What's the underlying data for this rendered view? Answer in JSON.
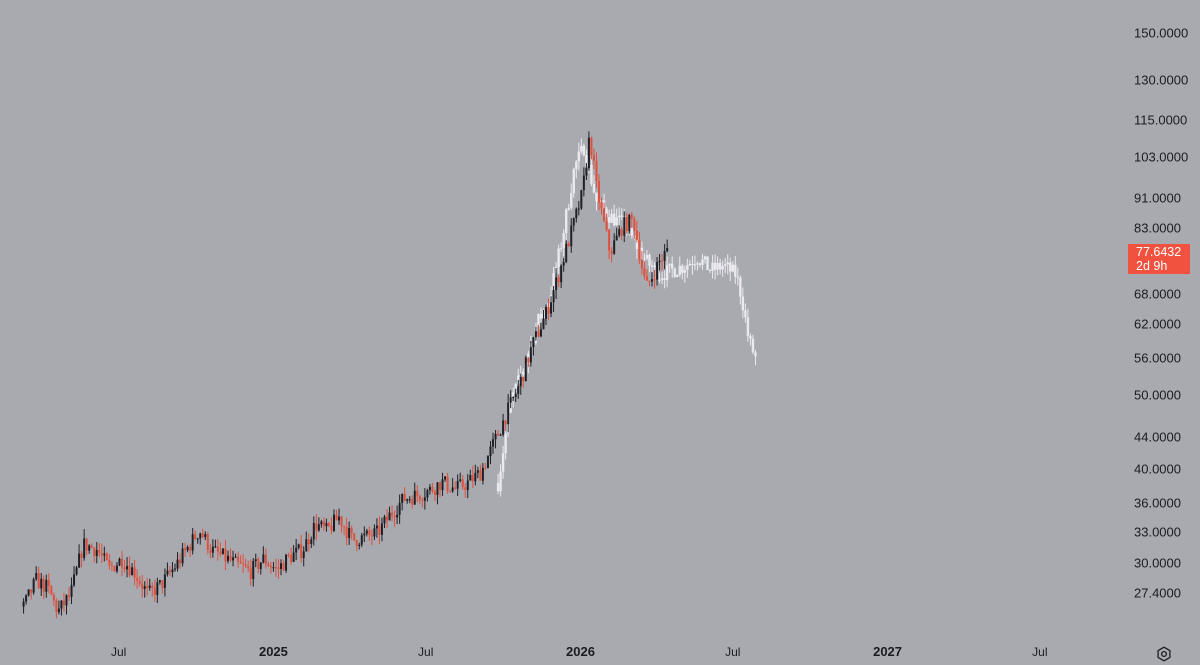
{
  "colors": {
    "background": "#a9aab0",
    "candle_up": "#1e2026",
    "candle_down": "#e0503c",
    "projection": "#e9e9ef",
    "price_tag": "#f0523f",
    "text": "#1a1c22"
  },
  "last_price": {
    "value": "77.6432",
    "countdown": "2d 9h"
  },
  "settings_icon": "gear-icon",
  "chart_data": {
    "type": "candlestick",
    "title": "",
    "xlabel": "",
    "ylabel": "",
    "scale": "log",
    "ylim": [
      25.5,
      155
    ],
    "xlim": [
      "2024-03-01",
      "2027-09-01"
    ],
    "grid": false,
    "y_ticks": [
      "150.0000",
      "130.0000",
      "115.0000",
      "103.0000",
      "91.0000",
      "83.0000",
      "68.0000",
      "62.0000",
      "56.0000",
      "50.0000",
      "44.0000",
      "40.0000",
      "36.0000",
      "33.0000",
      "30.0000",
      "27.4000"
    ],
    "x_ticks": [
      {
        "label": "Jul",
        "date": "2024-07-01",
        "major": false
      },
      {
        "label": "2025",
        "date": "2025-01-01",
        "major": true
      },
      {
        "label": "Jul",
        "date": "2025-07-01",
        "major": false
      },
      {
        "label": "2026",
        "date": "2026-01-01",
        "major": true
      },
      {
        "label": "Jul",
        "date": "2026-07-01",
        "major": false
      },
      {
        "label": "2027",
        "date": "2027-01-01",
        "major": true
      },
      {
        "label": "Jul",
        "date": "2027-07-01",
        "major": false
      }
    ],
    "series": [
      {
        "role": "actual",
        "close_path": [
          [
            "2024-03-10",
            26.3
          ],
          [
            "2024-03-25",
            28.5
          ],
          [
            "2024-04-08",
            27.8
          ],
          [
            "2024-04-20",
            25.9
          ],
          [
            "2024-05-05",
            27.3
          ],
          [
            "2024-05-20",
            31.8
          ],
          [
            "2024-06-05",
            31.3
          ],
          [
            "2024-06-20",
            29.5
          ],
          [
            "2024-07-05",
            30.4
          ],
          [
            "2024-07-20",
            29.2
          ],
          [
            "2024-08-05",
            27.3
          ],
          [
            "2024-08-20",
            28.1
          ],
          [
            "2024-09-05",
            29.6
          ],
          [
            "2024-09-20",
            31.3
          ],
          [
            "2024-10-05",
            33.2
          ],
          [
            "2024-10-20",
            31.2
          ],
          [
            "2024-11-05",
            30.5
          ],
          [
            "2024-11-20",
            29.8
          ],
          [
            "2024-12-05",
            29.3
          ],
          [
            "2024-12-20",
            30.4
          ],
          [
            "2025-01-05",
            29.4
          ],
          [
            "2025-01-20",
            30.6
          ],
          [
            "2025-02-05",
            31.3
          ],
          [
            "2025-02-20",
            33.8
          ],
          [
            "2025-03-05",
            33.1
          ],
          [
            "2025-03-20",
            34.5
          ],
          [
            "2025-04-05",
            32.2
          ],
          [
            "2025-04-20",
            32.5
          ],
          [
            "2025-05-05",
            32.9
          ],
          [
            "2025-05-20",
            34.8
          ],
          [
            "2025-06-05",
            36.5
          ],
          [
            "2025-06-20",
            36.9
          ],
          [
            "2025-07-05",
            37.4
          ],
          [
            "2025-07-20",
            38.4
          ],
          [
            "2025-08-05",
            37.6
          ],
          [
            "2025-08-20",
            38.3
          ],
          [
            "2025-09-05",
            39.6
          ],
          [
            "2025-09-20",
            43.2
          ],
          [
            "2025-10-05",
            47.2
          ],
          [
            "2025-10-20",
            51.4
          ],
          [
            "2025-11-05",
            58.2
          ],
          [
            "2025-11-20",
            63.5
          ],
          [
            "2025-12-05",
            71.4
          ],
          [
            "2025-12-20",
            81.2
          ],
          [
            "2026-01-03",
            91.8
          ],
          [
            "2026-01-12",
            110.0
          ],
          [
            "2026-01-20",
            93.8
          ],
          [
            "2026-02-05",
            77.0
          ],
          [
            "2026-02-20",
            83.5
          ],
          [
            "2026-03-05",
            85.0
          ],
          [
            "2026-03-20",
            69.0
          ],
          [
            "2026-04-05",
            75.0
          ],
          [
            "2026-04-15",
            77.6
          ]
        ]
      },
      {
        "role": "projection",
        "close_path": [
          [
            "2025-09-25",
            38.3
          ],
          [
            "2025-10-10",
            49.0
          ],
          [
            "2025-10-25",
            54.0
          ],
          [
            "2025-11-10",
            62.0
          ],
          [
            "2025-11-25",
            67.0
          ],
          [
            "2025-12-10",
            80.0
          ],
          [
            "2025-12-25",
            100.0
          ],
          [
            "2026-01-05",
            106.0
          ],
          [
            "2026-01-20",
            90.0
          ],
          [
            "2026-02-05",
            86.0
          ],
          [
            "2026-02-20",
            84.0
          ],
          [
            "2026-03-05",
            80.0
          ],
          [
            "2026-03-20",
            75.0
          ],
          [
            "2026-04-05",
            72.0
          ],
          [
            "2026-04-20",
            73.0
          ],
          [
            "2026-05-05",
            74.0
          ],
          [
            "2026-05-20",
            76.0
          ],
          [
            "2026-06-05",
            73.0
          ],
          [
            "2026-06-20",
            74.0
          ],
          [
            "2026-07-05",
            72.0
          ],
          [
            "2026-07-12",
            67.0
          ],
          [
            "2026-07-20",
            59.0
          ],
          [
            "2026-07-28",
            56.0
          ]
        ]
      }
    ]
  }
}
